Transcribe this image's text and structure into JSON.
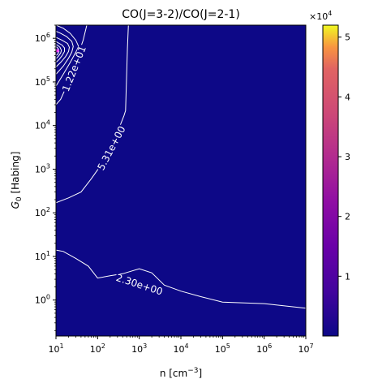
{
  "chart_data": {
    "type": "heatmap",
    "title": "CO(J=3-2)/CO(J=2-1)",
    "xlabel": {
      "base": "n [cm",
      "exp": "−3",
      "close": "]"
    },
    "ylabel": {
      "sym": "G",
      "sub": "0",
      "rest": " [Habing]"
    },
    "xscale": "log",
    "yscale": "log",
    "xlim": [
      10,
      10000000
    ],
    "ylim": [
      0.15,
      2000000
    ],
    "x_ticks": [
      {
        "value": 10,
        "exp": "1"
      },
      {
        "value": 100,
        "exp": "2"
      },
      {
        "value": 1000,
        "exp": "3"
      },
      {
        "value": 10000,
        "exp": "4"
      },
      {
        "value": 100000,
        "exp": "5"
      },
      {
        "value": 1000000,
        "exp": "6"
      },
      {
        "value": 10000000,
        "exp": "7"
      }
    ],
    "y_ticks": [
      {
        "value": 1,
        "exp": "0"
      },
      {
        "value": 10,
        "exp": "1"
      },
      {
        "value": 100,
        "exp": "2"
      },
      {
        "value": 1000,
        "exp": "3"
      },
      {
        "value": 10000,
        "exp": "4"
      },
      {
        "value": 100000,
        "exp": "5"
      },
      {
        "value": 1000000,
        "exp": "6"
      }
    ],
    "background_color": "#0d0887",
    "contour_color": "#ffffff",
    "contours": [
      {
        "label": "2.30e+00",
        "label_at": [
          1000,
          2.2
        ],
        "points": [
          [
            10,
            14
          ],
          [
            15,
            13
          ],
          [
            30,
            9
          ],
          [
            60,
            6
          ],
          [
            100,
            3.2
          ],
          [
            200,
            3.6
          ],
          [
            400,
            4.0
          ],
          [
            1000,
            5.2
          ],
          [
            2000,
            4.2
          ],
          [
            4000,
            2.2
          ],
          [
            10000,
            1.6
          ],
          [
            30000,
            1.2
          ],
          [
            100000,
            0.9
          ],
          [
            1000000,
            0.83
          ],
          [
            10000000,
            0.65
          ]
        ]
      },
      {
        "label": "5.31e+00",
        "label_at": [
          220,
          3000
        ],
        "points": [
          [
            10,
            170
          ],
          [
            20,
            220
          ],
          [
            40,
            300
          ],
          [
            70,
            600
          ],
          [
            110,
            1100
          ],
          [
            150,
            2000
          ],
          [
            300,
            7000
          ],
          [
            430,
            17000
          ],
          [
            470,
            22000
          ],
          [
            520,
            600000
          ],
          [
            550,
            2000000
          ]
        ]
      },
      {
        "label": "1.22e+01",
        "label_at": [
          28,
          200000
        ],
        "points": [
          [
            10,
            30000
          ],
          [
            13,
            40000
          ],
          [
            18,
            80000
          ],
          [
            25,
            200000
          ],
          [
            35,
            450000
          ],
          [
            45,
            900000
          ],
          [
            55,
            2000000
          ]
        ]
      },
      {
        "label": "",
        "points": [
          [
            10,
            80000
          ],
          [
            15,
            150000
          ],
          [
            22,
            280000
          ],
          [
            30,
            480000
          ],
          [
            35,
            650000
          ],
          [
            30,
            900000
          ],
          [
            22,
            1300000
          ],
          [
            15,
            1700000
          ],
          [
            10,
            2000000
          ]
        ]
      },
      {
        "label": "",
        "points": [
          [
            10,
            150000
          ],
          [
            15,
            230000
          ],
          [
            20,
            350000
          ],
          [
            24,
            480000
          ],
          [
            26,
            650000
          ],
          [
            24,
            850000
          ],
          [
            18,
            1100000
          ],
          [
            13,
            1300000
          ],
          [
            10,
            1450000
          ]
        ]
      },
      {
        "label": "",
        "points": [
          [
            10,
            220000
          ],
          [
            13,
            280000
          ],
          [
            17,
            380000
          ],
          [
            20,
            500000
          ],
          [
            21,
            620000
          ],
          [
            19,
            760000
          ],
          [
            14,
            900000
          ],
          [
            10,
            1050000
          ]
        ]
      },
      {
        "label": "",
        "points": [
          [
            10,
            280000
          ],
          [
            12,
            330000
          ],
          [
            14,
            400000
          ],
          [
            16,
            500000
          ],
          [
            16,
            600000
          ],
          [
            14,
            700000
          ],
          [
            11,
            800000
          ],
          [
            10,
            850000
          ]
        ]
      },
      {
        "label": "",
        "points": [
          [
            10,
            340000
          ],
          [
            11.5,
            390000
          ],
          [
            13,
            460000
          ],
          [
            13.5,
            530000
          ],
          [
            12.5,
            620000
          ],
          [
            11,
            690000
          ],
          [
            10,
            720000
          ]
        ]
      },
      {
        "label": "",
        "points": [
          [
            10,
            400000
          ],
          [
            11.2,
            440000
          ],
          [
            11.8,
            500000
          ],
          [
            11.5,
            570000
          ],
          [
            10.6,
            620000
          ],
          [
            10,
            640000
          ]
        ]
      }
    ],
    "colorbar": {
      "colormap": "plasma",
      "multiplier_base": "×10",
      "multiplier_exp": "4",
      "range": [
        0,
        5.2
      ],
      "ticks": [
        "1",
        "2",
        "3",
        "4",
        "5"
      ],
      "tick_values": [
        1,
        2,
        3,
        4,
        5
      ]
    },
    "peak_marker": {
      "x": 10.5,
      "y": 520000,
      "color": "#ff40ff"
    }
  }
}
